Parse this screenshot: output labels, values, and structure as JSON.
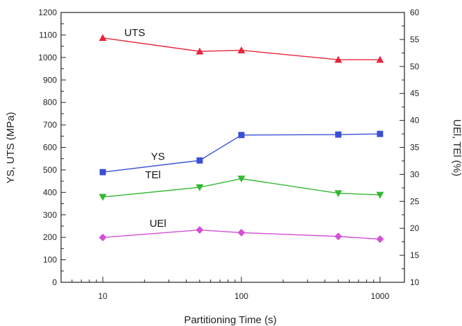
{
  "chart_data": {
    "type": "line",
    "title": "",
    "xlabel": "Partitioning Time (s)",
    "ylabel": "YS, UTS (MPa)",
    "y2label": "UEl, TEl (%)",
    "x_scale": "log",
    "xlim": [
      5,
      1500
    ],
    "x_ticks": [
      10,
      100,
      1000
    ],
    "x_tick_labels": [
      "10",
      "100",
      "1000"
    ],
    "ylim": [
      0,
      1200
    ],
    "y_ticks": [
      0,
      100,
      200,
      300,
      400,
      500,
      600,
      700,
      800,
      900,
      1000,
      1100,
      1200
    ],
    "y_tick_labels": [
      "0",
      "100",
      "200",
      "300",
      "400",
      "500",
      "600",
      "700",
      "800",
      "900",
      "1000",
      "1100",
      "1200"
    ],
    "y2lim": [
      10,
      60
    ],
    "y2_ticks": [
      10,
      15,
      20,
      25,
      30,
      35,
      40,
      45,
      50,
      55,
      60
    ],
    "y2_tick_labels": [
      "10",
      "15",
      "20",
      "25",
      "30",
      "35",
      "40",
      "45",
      "50",
      "55",
      "60"
    ],
    "grid": false,
    "x": [
      10,
      50,
      100,
      500,
      1000
    ],
    "series": [
      {
        "name": "UTS",
        "axis": "left",
        "color": "#e8243a",
        "marker": "triangle-up",
        "values": [
          1087,
          1027,
          1032,
          990,
          990
        ]
      },
      {
        "name": "YS",
        "axis": "left",
        "color": "#3b4fd6",
        "marker": "square",
        "values": [
          490,
          542,
          655,
          657,
          660
        ]
      },
      {
        "name": "TEl",
        "axis": "right",
        "color": "#33b833",
        "marker": "triangle-down",
        "values": [
          25.8,
          27.6,
          29.2,
          26.5,
          26.2
        ]
      },
      {
        "name": "UEl",
        "axis": "right",
        "color": "#d24fd6",
        "marker": "diamond",
        "values": [
          18.3,
          19.7,
          19.2,
          18.5,
          18.0
        ]
      }
    ]
  }
}
